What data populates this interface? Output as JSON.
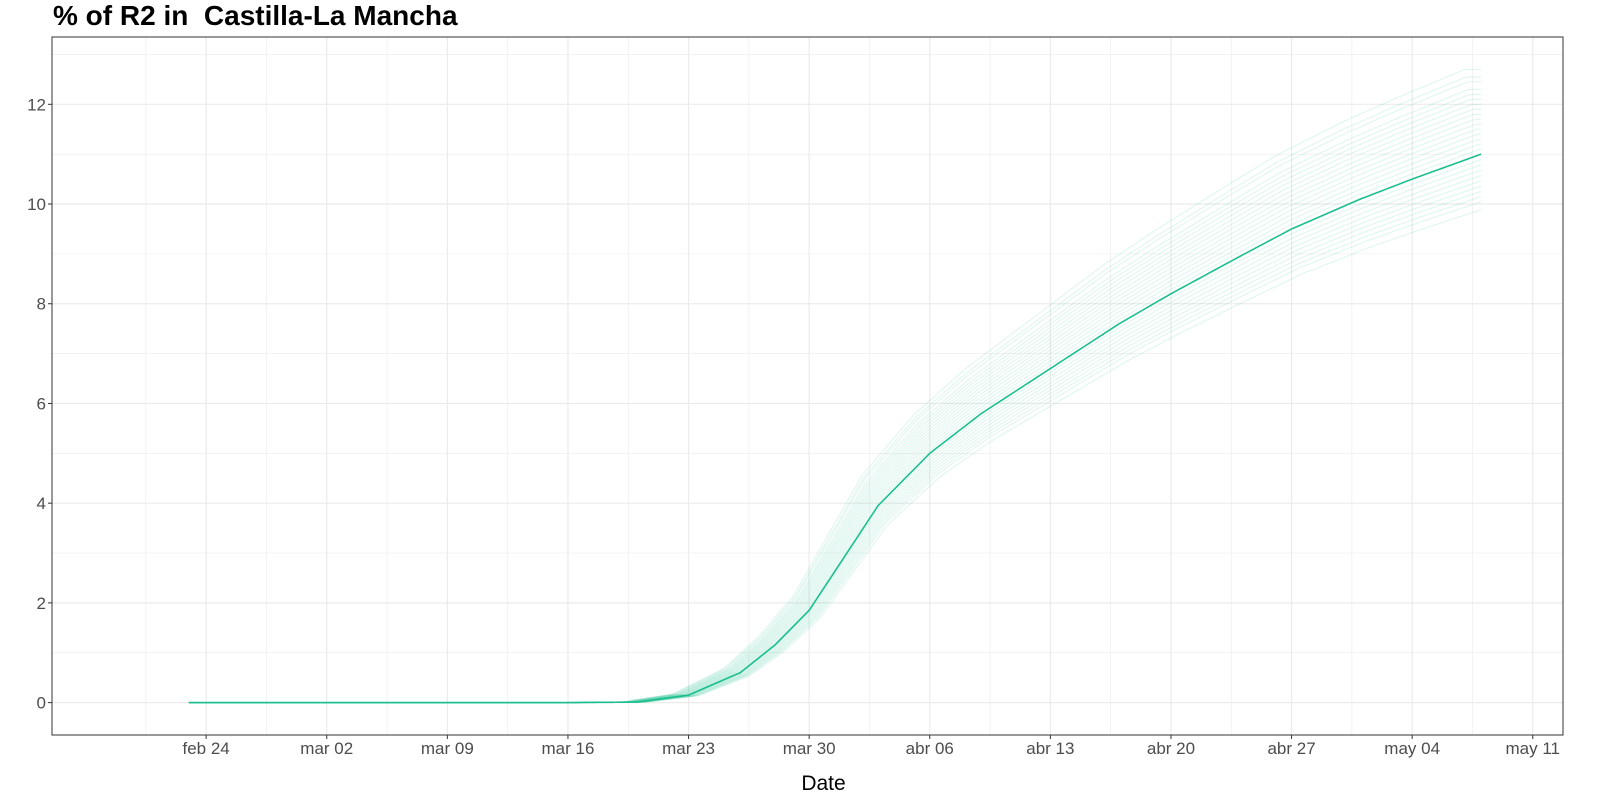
{
  "chart_data": {
    "type": "line",
    "title": "% of R2 in  Castilla-La Mancha",
    "xlabel": "Date",
    "ylabel": "",
    "x_range": [
      "2020-02-19",
      "2020-05-11"
    ],
    "xlim": [
      "2020-02-19",
      "2020-05-11"
    ],
    "ylim": [
      -0.65,
      13.35
    ],
    "x_ticks": [
      {
        "date": "2020-02-24",
        "label": "feb 24"
      },
      {
        "date": "2020-03-02",
        "label": "mar 02"
      },
      {
        "date": "2020-03-09",
        "label": "mar 09"
      },
      {
        "date": "2020-03-16",
        "label": "mar 16"
      },
      {
        "date": "2020-03-23",
        "label": "mar 23"
      },
      {
        "date": "2020-03-30",
        "label": "mar 30"
      },
      {
        "date": "2020-04-06",
        "label": "abr 06"
      },
      {
        "date": "2020-04-13",
        "label": "abr 13"
      },
      {
        "date": "2020-04-20",
        "label": "abr 20"
      },
      {
        "date": "2020-04-27",
        "label": "abr 27"
      },
      {
        "date": "2020-05-04",
        "label": "may 04"
      },
      {
        "date": "2020-05-11",
        "label": "may 11"
      }
    ],
    "y_ticks": [
      0,
      2,
      4,
      6,
      8,
      10,
      12
    ],
    "grid": true,
    "legend": "none",
    "colors": {
      "line": "#1abf8f",
      "grid": "#ebebeb",
      "panel_border": "#333333"
    },
    "main_series": {
      "x": [
        "2020-02-23",
        "2020-03-02",
        "2020-03-09",
        "2020-03-16",
        "2020-03-20",
        "2020-03-23",
        "2020-03-26",
        "2020-03-28",
        "2020-03-30",
        "2020-04-01",
        "2020-04-03",
        "2020-04-06",
        "2020-04-09",
        "2020-04-13",
        "2020-04-17",
        "2020-04-20",
        "2020-04-24",
        "2020-04-27",
        "2020-05-01",
        "2020-05-04",
        "2020-05-08"
      ],
      "y": [
        0,
        0,
        0,
        0,
        0.01,
        0.15,
        0.6,
        1.15,
        1.85,
        2.9,
        3.95,
        5.0,
        5.8,
        6.7,
        7.6,
        8.2,
        8.95,
        9.5,
        10.1,
        10.5,
        11.0
      ]
    },
    "ensemble_final_values": [
      9.95,
      10.1,
      10.2,
      10.3,
      10.4,
      10.5,
      10.6,
      10.7,
      10.8,
      10.9,
      11.0,
      11.1,
      11.2,
      11.3,
      11.4,
      11.5,
      11.6,
      11.7,
      11.8,
      11.9,
      12.0,
      12.1,
      12.2,
      12.3,
      12.45,
      12.55,
      12.7
    ]
  }
}
